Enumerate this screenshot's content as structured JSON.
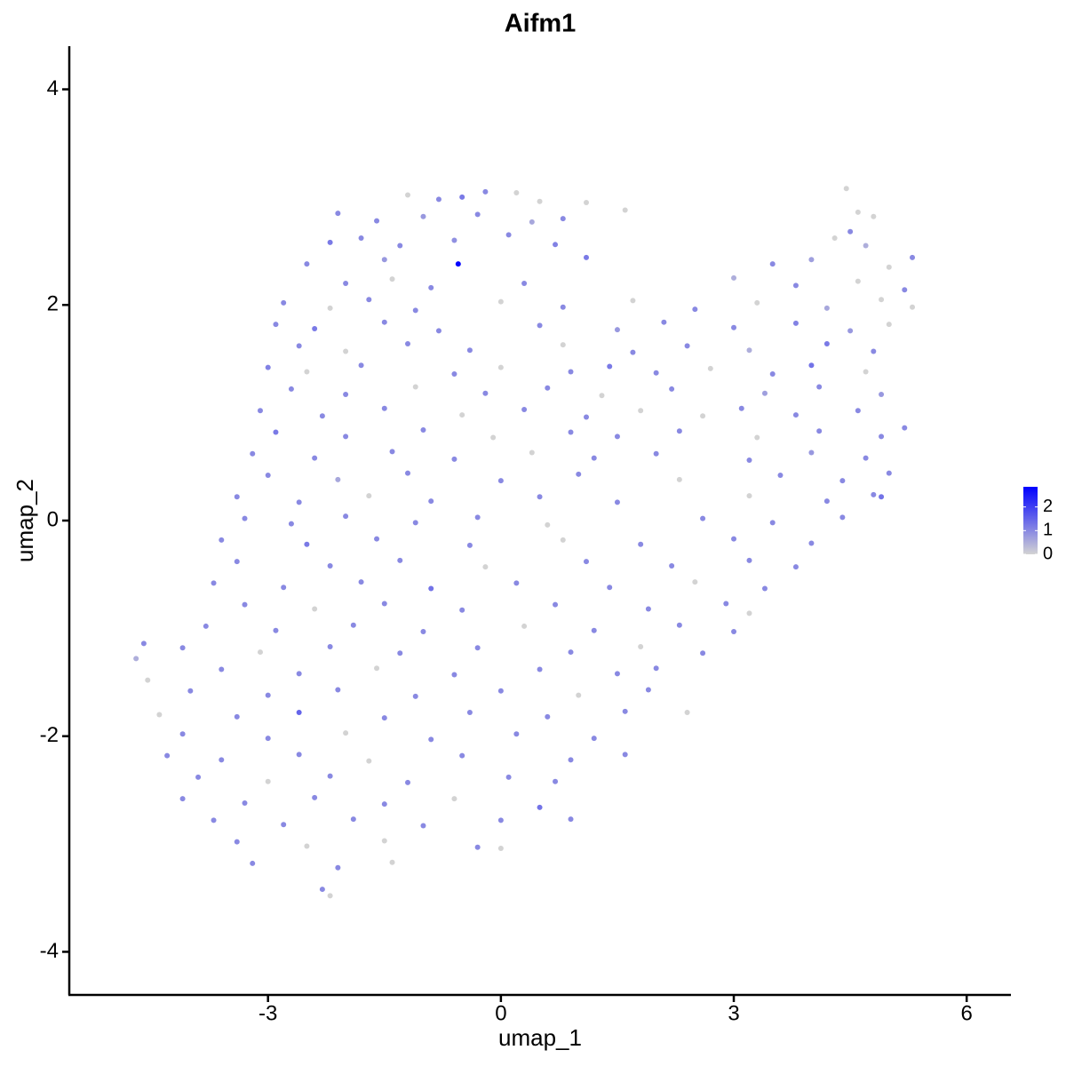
{
  "chart_data": {
    "type": "scatter",
    "title": "Aifm1",
    "xlabel": "umap_1",
    "ylabel": "umap_2",
    "xlim": [
      -5.56,
      6.57
    ],
    "ylim": [
      -4.4,
      4.4
    ],
    "xticks": [
      -3,
      0,
      3,
      6
    ],
    "yticks": [
      -4,
      -2,
      0,
      2,
      4
    ],
    "colors": [
      "#d3d3d3",
      "#0000ff"
    ],
    "colorlim": [
      0,
      2.85
    ],
    "colorticks": [
      0,
      1,
      2
    ],
    "x": [
      -1.2,
      -0.8,
      -0.5,
      -0.2,
      0.2,
      0.5,
      1.1,
      4.45,
      -2.1,
      -1.6,
      -1.0,
      -0.3,
      0.4,
      0.8,
      1.6,
      4.6,
      4.8,
      -2.2,
      -1.8,
      -1.3,
      -0.6,
      0.1,
      0.7,
      4.3,
      4.7,
      4.5,
      -2.5,
      -1.5,
      -0.55,
      1.1,
      3.5,
      4.0,
      5.0,
      5.3,
      -2.0,
      -1.4,
      -0.9,
      0.3,
      3.0,
      3.8,
      4.6,
      5.2,
      -2.8,
      -2.2,
      -1.7,
      -1.1,
      0.0,
      0.8,
      1.7,
      2.5,
      3.3,
      4.2,
      4.9,
      5.3,
      -2.9,
      -2.4,
      -1.5,
      -0.8,
      0.5,
      1.5,
      2.1,
      3.0,
      3.8,
      4.5,
      5.0,
      -2.6,
      -2.0,
      -1.2,
      -0.4,
      0.8,
      1.7,
      2.4,
      3.2,
      4.2,
      4.8,
      -3.0,
      -2.5,
      -1.8,
      -0.6,
      0.0,
      0.9,
      1.4,
      2.0,
      2.7,
      3.5,
      4.0,
      4.7,
      -2.7,
      -2.0,
      -1.1,
      -0.2,
      0.6,
      1.3,
      2.2,
      3.4,
      4.1,
      4.9,
      -3.1,
      -2.3,
      -1.5,
      -0.5,
      0.3,
      1.1,
      1.8,
      2.6,
      3.1,
      3.8,
      4.6,
      -2.9,
      -2.0,
      -1.0,
      -0.1,
      0.9,
      1.5,
      2.3,
      3.3,
      4.1,
      4.9,
      5.2,
      -3.2,
      -2.4,
      -1.4,
      -0.6,
      0.4,
      1.2,
      2.0,
      3.2,
      4.0,
      4.7,
      -3.0,
      -2.1,
      -1.2,
      0.0,
      1.0,
      2.3,
      3.6,
      4.4,
      5.0,
      -3.4,
      -2.6,
      -1.7,
      -0.9,
      0.5,
      1.5,
      3.2,
      4.2,
      4.8,
      -3.3,
      -2.7,
      -2.0,
      -1.1,
      -0.3,
      0.6,
      2.6,
      3.5,
      4.4,
      4.9,
      -3.6,
      -2.5,
      -1.6,
      -0.4,
      0.8,
      1.8,
      3.0,
      4.0,
      -3.4,
      -2.2,
      -1.3,
      -0.2,
      1.1,
      2.2,
      3.2,
      3.8,
      -3.7,
      -2.8,
      -1.8,
      -0.9,
      0.2,
      1.4,
      2.5,
      3.4,
      -3.3,
      -2.4,
      -1.5,
      -0.5,
      0.7,
      1.9,
      2.9,
      3.2,
      -3.8,
      -2.9,
      -1.9,
      -1.0,
      0.3,
      1.2,
      2.3,
      3.0,
      -4.1,
      -3.1,
      -2.2,
      -1.3,
      -0.3,
      0.9,
      1.8,
      2.6,
      -4.7,
      -4.6,
      -4.55,
      -3.6,
      -2.6,
      -1.6,
      -0.6,
      0.5,
      1.5,
      2.0,
      -4.0,
      -3.0,
      -2.1,
      -1.1,
      0.0,
      1.0,
      1.9,
      -4.4,
      -3.4,
      -2.6,
      -1.5,
      -0.4,
      0.6,
      1.6,
      2.4,
      -4.1,
      -3.0,
      -2.0,
      -0.9,
      0.2,
      1.2,
      -4.3,
      -3.6,
      -2.6,
      -1.7,
      -0.5,
      0.9,
      1.6,
      -3.9,
      -3.0,
      -2.2,
      -1.2,
      0.1,
      0.7,
      -4.1,
      -3.3,
      -2.4,
      -1.5,
      -0.6,
      0.5,
      -3.7,
      -2.8,
      -1.9,
      -1.0,
      0.0,
      0.9,
      -3.4,
      -2.5,
      -1.5,
      -0.3,
      0.0,
      -3.2,
      -2.1,
      -1.4,
      -2.3,
      -2.2
    ],
    "y": [
      3.02,
      2.98,
      3.0,
      3.05,
      3.04,
      2.96,
      2.95,
      3.08,
      2.85,
      2.78,
      2.82,
      2.84,
      2.77,
      2.8,
      2.88,
      2.86,
      2.82,
      2.58,
      2.62,
      2.55,
      2.6,
      2.65,
      2.56,
      2.62,
      2.55,
      2.68,
      2.38,
      2.42,
      2.38,
      2.44,
      2.38,
      2.42,
      2.35,
      2.44,
      2.2,
      2.24,
      2.16,
      2.2,
      2.25,
      2.18,
      2.22,
      2.14,
      2.02,
      1.97,
      2.05,
      1.95,
      2.03,
      1.98,
      2.04,
      1.96,
      2.02,
      1.97,
      2.05,
      1.98,
      1.82,
      1.78,
      1.84,
      1.76,
      1.81,
      1.77,
      1.84,
      1.79,
      1.83,
      1.76,
      1.82,
      1.62,
      1.57,
      1.64,
      1.58,
      1.63,
      1.56,
      1.62,
      1.58,
      1.64,
      1.57,
      1.42,
      1.38,
      1.44,
      1.36,
      1.42,
      1.38,
      1.43,
      1.37,
      1.41,
      1.36,
      1.44,
      1.38,
      1.22,
      1.17,
      1.24,
      1.18,
      1.23,
      1.16,
      1.22,
      1.18,
      1.24,
      1.17,
      1.02,
      0.97,
      1.04,
      0.98,
      1.03,
      0.96,
      1.02,
      0.97,
      1.04,
      0.98,
      1.02,
      0.82,
      0.78,
      0.84,
      0.77,
      0.82,
      0.78,
      0.83,
      0.77,
      0.83,
      0.78,
      0.86,
      0.62,
      0.58,
      0.64,
      0.57,
      0.63,
      0.58,
      0.62,
      0.56,
      0.63,
      0.58,
      0.42,
      0.38,
      0.44,
      0.37,
      0.43,
      0.38,
      0.42,
      0.37,
      0.44,
      0.22,
      0.17,
      0.23,
      0.18,
      0.22,
      0.17,
      0.23,
      0.18,
      0.24,
      0.02,
      -0.03,
      0.04,
      -0.02,
      0.03,
      -0.04,
      0.02,
      -0.02,
      0.03,
      0.22,
      -0.18,
      -0.22,
      -0.17,
      -0.23,
      -0.18,
      -0.22,
      -0.17,
      -0.21,
      -0.38,
      -0.42,
      -0.37,
      -0.43,
      -0.38,
      -0.42,
      -0.37,
      -0.43,
      -0.58,
      -0.62,
      -0.57,
      -0.63,
      -0.58,
      -0.62,
      -0.57,
      -0.63,
      -0.78,
      -0.82,
      -0.77,
      -0.83,
      -0.78,
      -0.82,
      -0.77,
      -0.86,
      -0.98,
      -1.02,
      -0.97,
      -1.03,
      -0.98,
      -1.02,
      -0.97,
      -1.03,
      -1.18,
      -1.22,
      -1.17,
      -1.23,
      -1.18,
      -1.22,
      -1.17,
      -1.23,
      -1.28,
      -1.14,
      -1.48,
      -1.38,
      -1.42,
      -1.37,
      -1.43,
      -1.38,
      -1.42,
      -1.37,
      -1.58,
      -1.62,
      -1.57,
      -1.63,
      -1.58,
      -1.62,
      -1.57,
      -1.8,
      -1.82,
      -1.78,
      -1.83,
      -1.78,
      -1.82,
      -1.77,
      -1.78,
      -1.98,
      -2.02,
      -1.97,
      -2.03,
      -1.98,
      -2.02,
      -2.18,
      -2.22,
      -2.17,
      -2.23,
      -2.18,
      -2.22,
      -2.17,
      -2.38,
      -2.42,
      -2.37,
      -2.43,
      -2.38,
      -2.42,
      -2.58,
      -2.62,
      -2.57,
      -2.63,
      -2.58,
      -2.66,
      -2.78,
      -2.82,
      -2.77,
      -2.83,
      -2.78,
      -2.77,
      -2.98,
      -3.02,
      -2.97,
      -3.03,
      -3.04,
      -3.18,
      -3.22,
      -3.17,
      -3.42,
      -3.48
    ],
    "values": [
      0,
      1,
      1.2,
      1,
      0,
      0,
      0,
      0,
      1,
      1,
      0.8,
      1,
      0.6,
      1,
      0,
      0,
      0,
      1.2,
      1,
      1,
      0.9,
      1,
      1.1,
      0,
      0.5,
      1,
      1,
      0.8,
      2.8,
      1.2,
      1,
      0.7,
      0,
      1,
      1,
      0,
      1,
      1,
      0.5,
      1,
      0,
      1,
      1,
      0,
      1,
      1,
      0,
      1,
      0,
      1,
      0,
      0.6,
      0,
      0,
      1,
      1.2,
      1,
      1,
      1,
      0.8,
      1,
      1,
      1.1,
      0.8,
      0,
      1,
      0,
      1,
      1,
      0,
      1,
      1,
      0.5,
      1.2,
      1,
      1.1,
      0,
      1,
      1,
      0,
      1,
      1.2,
      1,
      0,
      1,
      1.3,
      0,
      1,
      1,
      0,
      1,
      1,
      0,
      1,
      0.7,
      1,
      0.8,
      1,
      1,
      1,
      0,
      1,
      1,
      0,
      0,
      1,
      1,
      1,
      1.2,
      1,
      1,
      0,
      1,
      1,
      1,
      0,
      1,
      1,
      1,
      1,
      1,
      1,
      1,
      0,
      1,
      1,
      1,
      0.8,
      1,
      1,
      0.6,
      1,
      1,
      1,
      0,
      1,
      1,
      1,
      1,
      1,
      0,
      1,
      1,
      1,
      0,
      1,
      1,
      1,
      1,
      1,
      1,
      1,
      0,
      1,
      1,
      1,
      1.3,
      1,
      1.2,
      1,
      1,
      0,
      1,
      1,
      1,
      1,
      1,
      1,
      0,
      1,
      1,
      1,
      1,
      1,
      1,
      1,
      1.3,
      1,
      1,
      0,
      1,
      1,
      0,
      1,
      1,
      1,
      1,
      1,
      0,
      1,
      1,
      1,
      1,
      0,
      1,
      1,
      1,
      1,
      0,
      1,
      1,
      1,
      1,
      0,
      1,
      0.5,
      1,
      0,
      1,
      1,
      0,
      1,
      1,
      1,
      1,
      1,
      1,
      1,
      1,
      1,
      0,
      1,
      0,
      1,
      1.5,
      1,
      1,
      1,
      1,
      0,
      1,
      1,
      0,
      1,
      1,
      1,
      1,
      1,
      1,
      0,
      1,
      1,
      1,
      1,
      0,
      1,
      1,
      1,
      1,
      1,
      1,
      1,
      1,
      0,
      1.3,
      1,
      1,
      1,
      1,
      1,
      1,
      1,
      0,
      0,
      1,
      0,
      1,
      1,
      0,
      1,
      0
    ]
  }
}
